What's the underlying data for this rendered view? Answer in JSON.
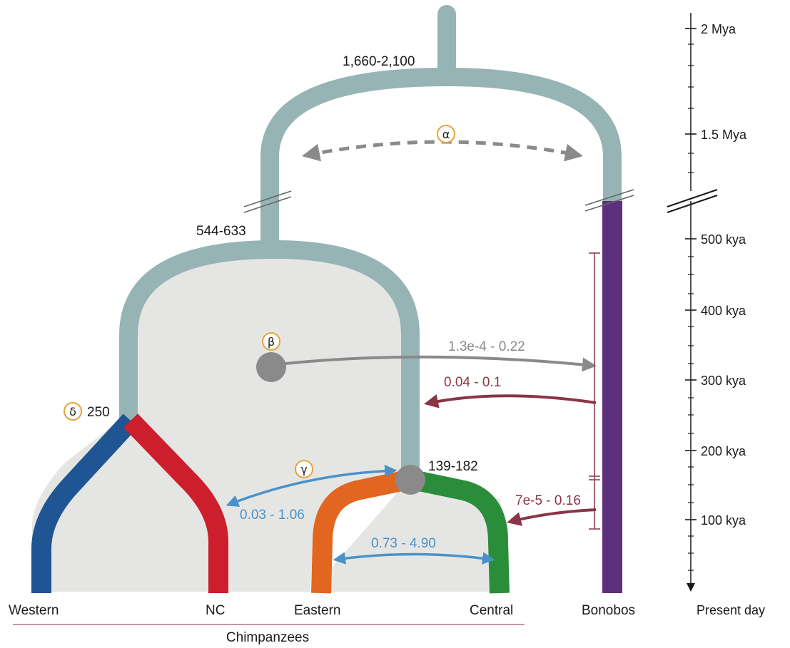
{
  "colors": {
    "ancestral": "#97b4b5",
    "fill_region": "#e5e6e4",
    "western": "#1f5593",
    "nc": "#cc1e2d",
    "eastern": "#e2661f",
    "central": "#2a8d3a",
    "bonobos": "#5e2f7d",
    "gray_flow": "#8a8a8a",
    "maroon_flow": "#8a3548",
    "blue_flow": "#4a92c9",
    "greek_ring": "#e9a13c"
  },
  "scale": {
    "ticks": [
      "2 Mya",
      "1.5 Mya",
      "500 kya",
      "400 kya",
      "300 kya",
      "200 kya",
      "100 kya"
    ],
    "present": "Present day"
  },
  "node_labels": {
    "root": "1,660-2,100",
    "chimp_split": "544-633",
    "east_central_split": "139-182",
    "delta_value": "250"
  },
  "greek": {
    "alpha": "α",
    "beta": "β",
    "gamma": "γ",
    "delta": "δ"
  },
  "flows": {
    "beta_to_bonobos": "1.3e-4 - 0.22",
    "bonobos_to_central_old": "0.04 - 0.1",
    "bonobos_to_central_recent": "7e-5 - 0.16",
    "gamma_nc": "0.03 - 1.06",
    "east_central": "0.73 - 4.90"
  },
  "taxa": {
    "western": "Western",
    "nc": "NC",
    "eastern": "Eastern",
    "central": "Central",
    "bonobos": "Bonobos",
    "group": "Chimpanzees"
  }
}
